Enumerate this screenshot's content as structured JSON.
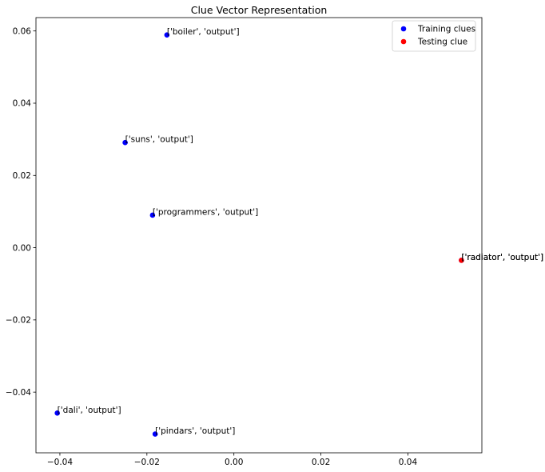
{
  "chart_data": {
    "type": "scatter",
    "title": "Clue Vector Representation",
    "xlabel": "",
    "ylabel": "",
    "xlim": [
      -0.0455,
      0.057
    ],
    "ylim": [
      -0.0568,
      0.0637
    ],
    "xticks": [
      -0.04,
      -0.02,
      0.0,
      0.02,
      0.04
    ],
    "xtick_labels": [
      "−0.04",
      "−0.02",
      "0.00",
      "0.02",
      "0.04"
    ],
    "yticks": [
      -0.04,
      -0.02,
      0.0,
      0.02,
      0.04,
      0.06
    ],
    "ytick_labels": [
      "−0.04",
      "−0.02",
      "0.00",
      "0.02",
      "0.04",
      "0.06"
    ],
    "grid": false,
    "legend_position": "top-right",
    "series": [
      {
        "name": "Training clues",
        "color": "#0000ff",
        "points": [
          {
            "x": -0.0154,
            "y": 0.0589,
            "label": "['boiler', 'output']"
          },
          {
            "x": -0.025,
            "y": 0.0291,
            "label": "['suns', 'output']"
          },
          {
            "x": -0.0187,
            "y": 0.009,
            "label": "['programmers', 'output']"
          },
          {
            "x": 0.0523,
            "y": -0.0035,
            "label": "['radiator', 'output']"
          },
          {
            "x": -0.0406,
            "y": -0.0458,
            "label": "['dali', 'output']"
          },
          {
            "x": -0.0181,
            "y": -0.0516,
            "label": "['pindars', 'output']"
          }
        ]
      },
      {
        "name": "Testing clue",
        "color": "#ff0000",
        "points": [
          {
            "x": 0.0523,
            "y": -0.0035,
            "label": "['radiator', 'output']"
          }
        ]
      }
    ]
  }
}
